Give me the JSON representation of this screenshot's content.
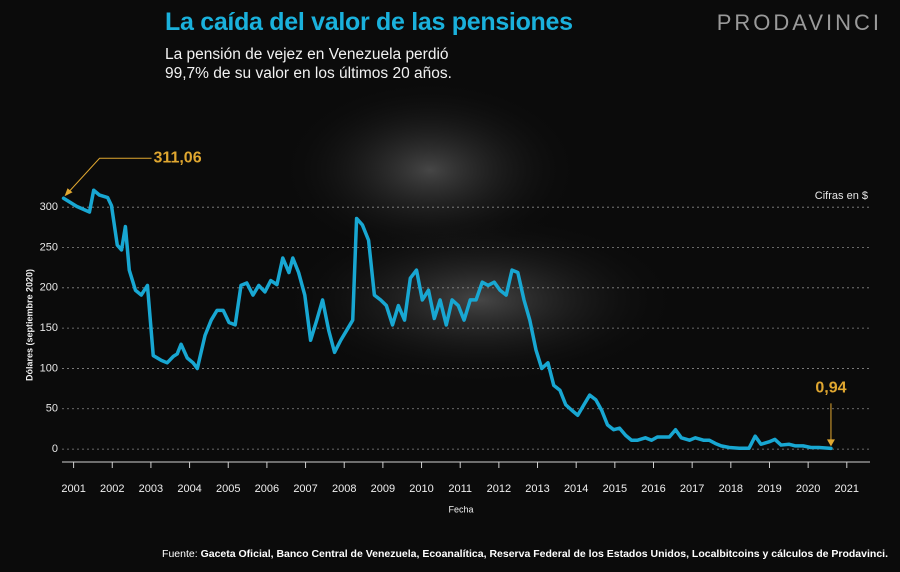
{
  "chart_data": {
    "type": "line",
    "title": "La caída del valor de las pensiones",
    "subtitle": "La pensión de vejez en Venezuela perdió 99,7% de su valor en los últimos 20 años.",
    "brand": "PRODAVINCI",
    "note": "Cifras en $",
    "xlabel": "Fecha",
    "ylabel": "Dólares (septiembre 2020)",
    "source": {
      "prefix": "Fuente:",
      "text": "Gaceta Oficial, Banco Central de Venezuela, Ecoanalítica, Reserva Federal de los Estados Unidos, Localbitcoins y cálculos de Prodavinci."
    },
    "x": [
      2000.74,
      2001.08,
      2001.41,
      2001.52,
      2001.67,
      2001.88,
      2001.98,
      2002.13,
      2002.24,
      2002.34,
      2002.44,
      2002.6,
      2002.75,
      2002.91,
      2003.06,
      2003.27,
      2003.42,
      2003.58,
      2003.68,
      2003.78,
      2003.94,
      2004.09,
      2004.2,
      2004.4,
      2004.56,
      2004.71,
      2004.87,
      2005.02,
      2005.18,
      2005.33,
      2005.48,
      2005.64,
      2005.79,
      2005.95,
      2006.1,
      2006.26,
      2006.41,
      2006.57,
      2006.67,
      2006.82,
      2006.98,
      2007.13,
      2007.29,
      2007.44,
      2007.6,
      2007.75,
      2007.91,
      2008.06,
      2008.22,
      2008.32,
      2008.47,
      2008.63,
      2008.78,
      2008.94,
      2009.09,
      2009.25,
      2009.4,
      2009.56,
      2009.71,
      2009.87,
      2010.02,
      2010.18,
      2010.33,
      2010.48,
      2010.64,
      2010.79,
      2010.95,
      2011.1,
      2011.26,
      2011.41,
      2011.57,
      2011.72,
      2011.88,
      2012.03,
      2012.19,
      2012.34,
      2012.49,
      2012.65,
      2012.8,
      2012.96,
      2013.11,
      2013.27,
      2013.42,
      2013.58,
      2013.73,
      2013.89,
      2014.04,
      2014.2,
      2014.35,
      2014.51,
      2014.66,
      2014.81,
      2014.97,
      2015.12,
      2015.28,
      2015.43,
      2015.59,
      2015.79,
      2015.95,
      2016.1,
      2016.26,
      2016.41,
      2016.57,
      2016.72,
      2016.93,
      2017.08,
      2017.29,
      2017.44,
      2017.6,
      2017.75,
      2017.96,
      2018.22,
      2018.47,
      2018.63,
      2018.78,
      2018.99,
      2019.14,
      2019.3,
      2019.51,
      2019.66,
      2019.87,
      2020.07,
      2020.28,
      2020.59
    ],
    "series": [
      {
        "color": "#18a7d2",
        "values": [
          311.06,
          301,
          294,
          321,
          315,
          312,
          302,
          253,
          247,
          276,
          222,
          197,
          191,
          203,
          116,
          110,
          107,
          115,
          118,
          130,
          113,
          107,
          100,
          141,
          160,
          172,
          172,
          157,
          154,
          203,
          206,
          191,
          203,
          195,
          209,
          204,
          237,
          219,
          237,
          219,
          191,
          135,
          160,
          185,
          147,
          120,
          135,
          147,
          160,
          286,
          278,
          259,
          191,
          185,
          178,
          154,
          178,
          160,
          212,
          222,
          185,
          197,
          162,
          185,
          154,
          185,
          178,
          160,
          185,
          185,
          207,
          203,
          207,
          197,
          191,
          222,
          219,
          185,
          160,
          123,
          100,
          107,
          79,
          73,
          55,
          48,
          42,
          55,
          67,
          61,
          48,
          30,
          24,
          26,
          17,
          11,
          11,
          14,
          11,
          15,
          15,
          15,
          24,
          14,
          11,
          14,
          11,
          11,
          7,
          4,
          2,
          1,
          1,
          16,
          6,
          9,
          12,
          5,
          6,
          4,
          4,
          2,
          2,
          0.94
        ],
        "value_labels": [
          "311,06",
          null,
          null,
          null,
          null,
          null,
          null,
          null,
          null,
          null,
          null,
          null,
          null,
          null,
          null,
          null,
          null,
          null,
          null,
          null,
          null,
          null,
          null,
          null,
          null,
          null,
          null,
          null,
          null,
          null,
          null,
          null,
          null,
          null,
          null,
          null,
          null,
          null,
          null,
          null,
          null,
          null,
          null,
          null,
          null,
          null,
          null,
          null,
          null,
          null,
          null,
          null,
          null,
          null,
          null,
          null,
          null,
          null,
          null,
          null,
          null,
          null,
          null,
          null,
          null,
          null,
          null,
          null,
          null,
          null,
          null,
          null,
          null,
          null,
          null,
          null,
          null,
          null,
          null,
          null,
          null,
          null,
          null,
          null,
          null,
          null,
          null,
          null,
          null,
          null,
          null,
          null,
          null,
          null,
          null,
          null,
          null,
          null,
          null,
          null,
          null,
          null,
          null,
          null,
          null,
          null,
          null,
          null,
          null,
          null,
          null,
          null,
          null,
          null,
          null,
          null,
          null,
          null,
          null,
          null,
          null,
          null,
          null,
          "0,94"
        ]
      }
    ],
    "label_color": "#e0a730",
    "xlim": [
      2000.7,
      2021.6
    ],
    "xticks": [
      2001,
      2002,
      2003,
      2004,
      2005,
      2006,
      2007,
      2008,
      2009,
      2010,
      2011,
      2012,
      2013,
      2014,
      2015,
      2016,
      2017,
      2018,
      2019,
      2020,
      2021
    ],
    "ylim": [
      -16,
      330
    ],
    "yticks": [
      0,
      50,
      100,
      150,
      200,
      250,
      300
    ],
    "grid": true
  }
}
